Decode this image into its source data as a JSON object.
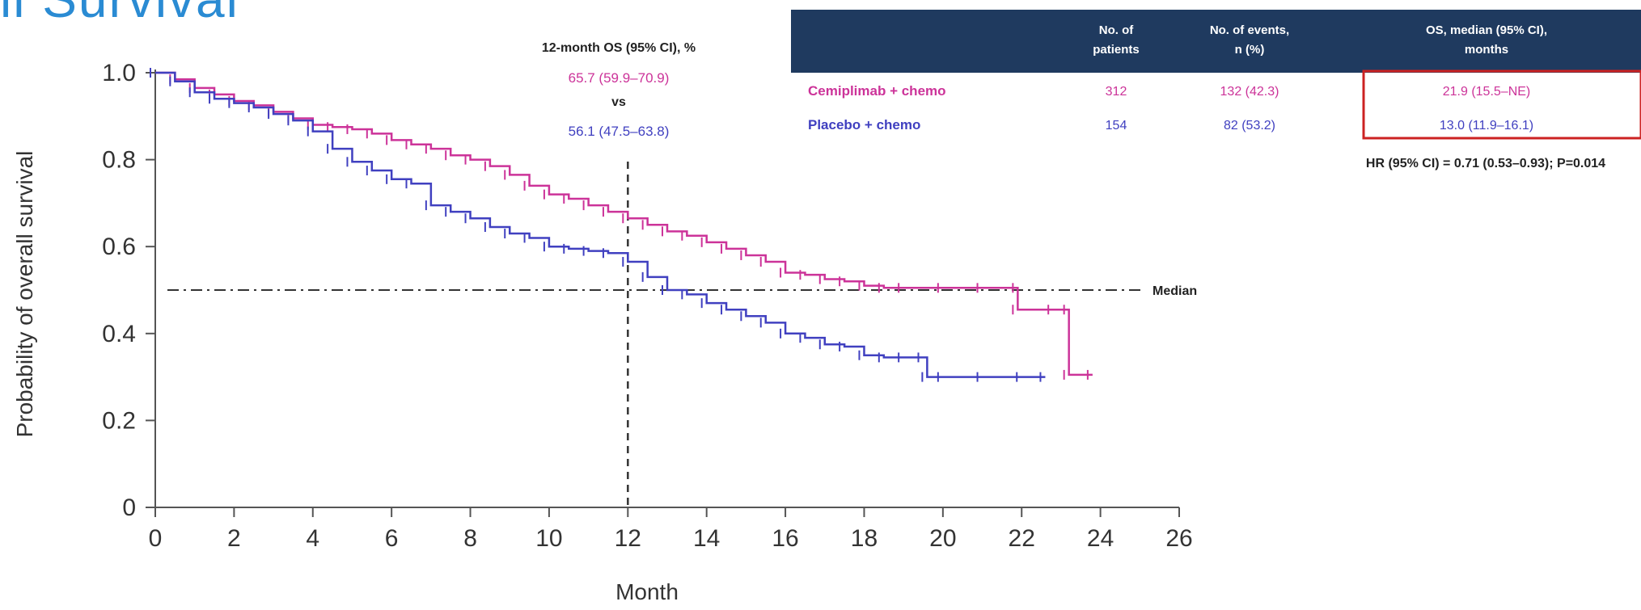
{
  "header_fragment": "ll Survival",
  "chart_data": {
    "type": "line",
    "xlabel": "Month",
    "ylabel": "Probability of overall survival",
    "xlim": [
      0,
      26
    ],
    "ylim": [
      0,
      1.0
    ],
    "xticks": [
      "0",
      "2",
      "4",
      "6",
      "8",
      "10",
      "12",
      "14",
      "16",
      "18",
      "20",
      "22",
      "24",
      "26"
    ],
    "yticks": [
      "0",
      "0.2",
      "0.4",
      "0.6",
      "0.8",
      "1.0"
    ],
    "grid": false,
    "median_line": {
      "y": 0.5,
      "label": "Median"
    },
    "reference_line": {
      "x": 12
    },
    "series": [
      {
        "name": "Cemiplimab + chemo",
        "color": "#cc3399",
        "x": [
          0,
          0.5,
          1,
          1.5,
          2,
          2.5,
          3,
          3.5,
          4,
          4.5,
          5,
          5.5,
          6,
          6.5,
          7,
          7.5,
          8,
          8.5,
          9,
          9.5,
          10,
          10.5,
          11,
          11.5,
          12,
          12.5,
          13,
          13.5,
          14,
          14.5,
          15,
          15.5,
          16,
          16.5,
          17,
          17.5,
          18,
          18.5,
          19,
          20,
          21,
          21.9,
          21.9,
          22.8,
          23.2,
          23.2,
          23.8
        ],
        "y": [
          1.0,
          0.985,
          0.965,
          0.95,
          0.935,
          0.925,
          0.91,
          0.895,
          0.88,
          0.875,
          0.87,
          0.86,
          0.845,
          0.835,
          0.825,
          0.81,
          0.8,
          0.785,
          0.765,
          0.74,
          0.72,
          0.71,
          0.695,
          0.68,
          0.665,
          0.65,
          0.635,
          0.625,
          0.61,
          0.595,
          0.58,
          0.565,
          0.54,
          0.535,
          0.525,
          0.52,
          0.51,
          0.505,
          0.505,
          0.505,
          0.505,
          0.505,
          0.455,
          0.455,
          0.455,
          0.305,
          0.305
        ]
      },
      {
        "name": "Placebo + chemo",
        "color": "#4040c0",
        "x": [
          0,
          0.5,
          1,
          1.5,
          2,
          2.5,
          3,
          3.5,
          4,
          4.5,
          5,
          5.5,
          6,
          6.5,
          7,
          7.5,
          8,
          8.5,
          9,
          9.5,
          10,
          10.5,
          11,
          11.5,
          12,
          12.5,
          13,
          13.5,
          14,
          14.5,
          15,
          15.5,
          16,
          16.5,
          17,
          17.5,
          18,
          18.5,
          19,
          19.5,
          19.6,
          20,
          21,
          22,
          22.6
        ],
        "y": [
          1.0,
          0.98,
          0.955,
          0.94,
          0.93,
          0.92,
          0.905,
          0.89,
          0.865,
          0.825,
          0.795,
          0.775,
          0.755,
          0.745,
          0.695,
          0.68,
          0.665,
          0.645,
          0.63,
          0.62,
          0.6,
          0.595,
          0.59,
          0.585,
          0.565,
          0.53,
          0.5,
          0.49,
          0.47,
          0.455,
          0.44,
          0.425,
          0.4,
          0.39,
          0.375,
          0.37,
          0.35,
          0.345,
          0.345,
          0.345,
          0.3,
          0.3,
          0.3,
          0.3,
          0.3
        ]
      }
    ]
  },
  "annotation": {
    "title": "12-month OS (95% CI), %",
    "cemiplimab_value": "65.7 (59.9–70.9)",
    "vs": "vs",
    "placebo_value": "56.1 (47.5–63.8)"
  },
  "table": {
    "headers": [
      "No. of patients",
      "No. of events, n (%)",
      "OS, median (95% CI), months"
    ],
    "rows": [
      {
        "label": "Cemiplimab + chemo",
        "patients": "312",
        "events": "132 (42.3)",
        "os": "21.9 (15.5–NE)"
      },
      {
        "label": "Placebo + chemo",
        "patients": "154",
        "events": "82 (53.2)",
        "os": "13.0 (11.9–16.1)"
      }
    ],
    "hr_text": "HR (95% CI) = 0.71 (0.53–0.93); P=0.014"
  },
  "colors": {
    "cemiplimab": "#cc3399",
    "placebo": "#4040c0",
    "table_header_bg": "#1f3a5f",
    "highlight_box": "#cc2222"
  }
}
